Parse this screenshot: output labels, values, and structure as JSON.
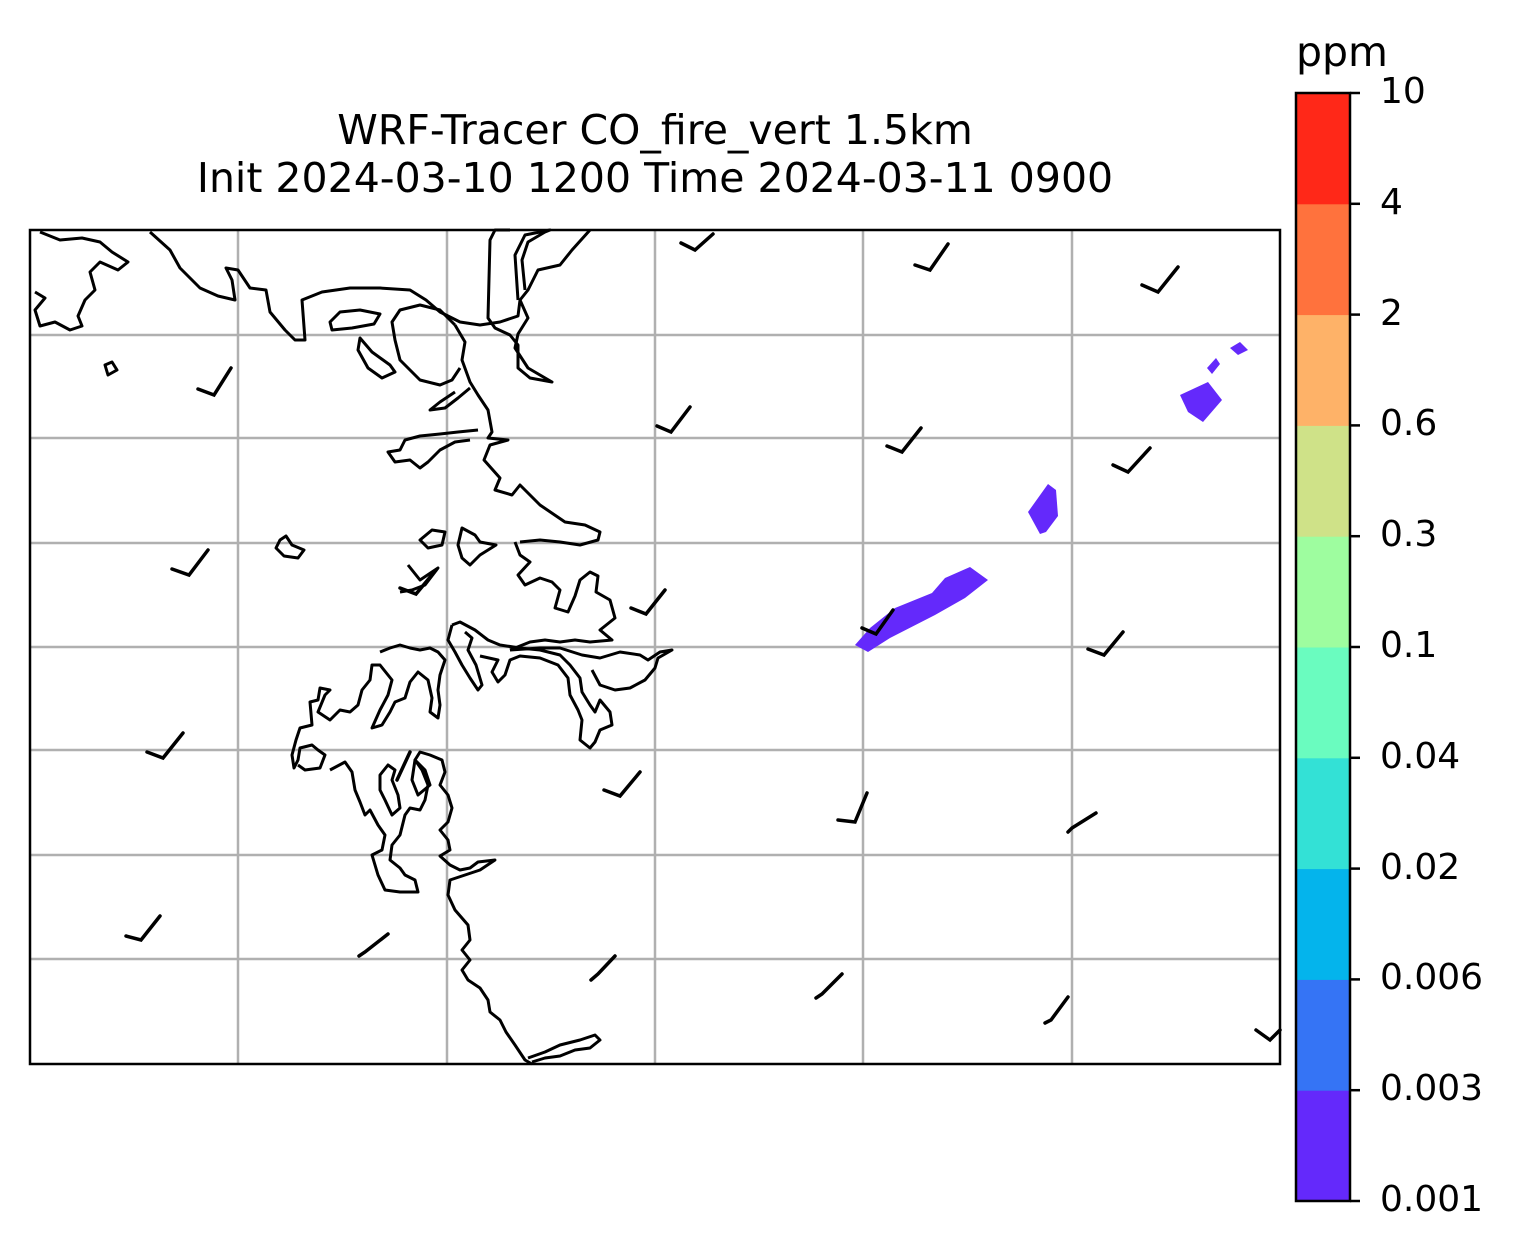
{
  "title": {
    "line1": "WRF-Tracer CO_fire_vert 1.5km",
    "line2": "Init 2024-03-10 1200 Time 2024-03-11 0900"
  },
  "colorbar": {
    "unit": "ppm",
    "levels": [
      "0.001",
      "0.003",
      "0.006",
      "0.02",
      "0.04",
      "0.1",
      "0.3",
      "0.6",
      "2",
      "4",
      "10"
    ],
    "colors": [
      "#6429fb",
      "#3574f5",
      "#04b4ec",
      "#33e1d6",
      "#6afcbf",
      "#9efd9f",
      "#cfe288",
      "#feb268",
      "#ff723d",
      "#ff2818"
    ]
  },
  "map": {
    "gridlines": true,
    "coastline_color": "#000000",
    "plume_color": "#6429fb",
    "plume_level": "0.001"
  }
}
